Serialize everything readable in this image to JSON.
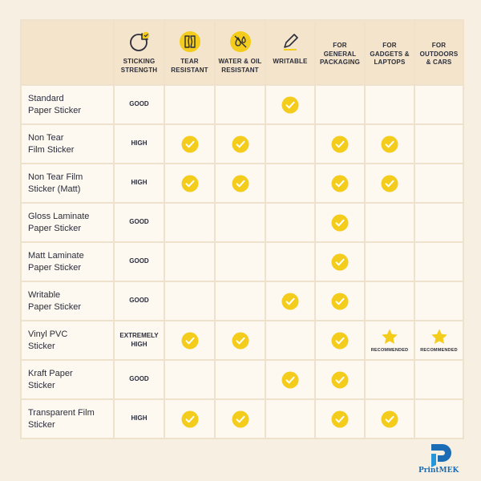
{
  "colors": {
    "accent_yellow": "#f4cc1b",
    "header_bg": "#f3e4cb",
    "page_bg": "#f8efe3",
    "text": "#2b2d3a",
    "brand_blue": "#1a6db5"
  },
  "headers": [
    {
      "label": "",
      "icon": ""
    },
    {
      "label": "STICKING STRENGTH",
      "icon": "sticker-icon"
    },
    {
      "label": "TEAR RESISTANT",
      "icon": "torn-paper-icon"
    },
    {
      "label": "WATER & OIL RESISTANT",
      "icon": "droplets-icon"
    },
    {
      "label": "WRITABLE",
      "icon": "pencil-icon"
    },
    {
      "label": "FOR GENERAL PACKAGING",
      "icon": ""
    },
    {
      "label": "FOR GADGETS & LAPTOPS",
      "icon": ""
    },
    {
      "label": "FOR OUTDOORS & CARS",
      "icon": ""
    }
  ],
  "rows": [
    {
      "name": [
        "Standard",
        "Paper Sticker"
      ],
      "strength": [
        "GOOD"
      ],
      "cells": [
        "",
        "",
        "check",
        "",
        "",
        ""
      ]
    },
    {
      "name": [
        "Non Tear",
        "Film Sticker"
      ],
      "strength": [
        "HIGH"
      ],
      "cells": [
        "check",
        "check",
        "",
        "check",
        "check",
        ""
      ]
    },
    {
      "name": [
        "Non Tear Film",
        "Sticker (Matt)"
      ],
      "strength": [
        "HIGH"
      ],
      "cells": [
        "check",
        "check",
        "",
        "check",
        "check",
        ""
      ]
    },
    {
      "name": [
        "Gloss Laminate",
        "Paper Sticker"
      ],
      "strength": [
        "GOOD"
      ],
      "cells": [
        "",
        "",
        "",
        "check",
        "",
        ""
      ]
    },
    {
      "name": [
        "Matt Laminate",
        "Paper Sticker"
      ],
      "strength": [
        "GOOD"
      ],
      "cells": [
        "",
        "",
        "",
        "check",
        "",
        ""
      ]
    },
    {
      "name": [
        "Writable",
        "Paper Sticker"
      ],
      "strength": [
        "GOOD"
      ],
      "cells": [
        "",
        "",
        "check",
        "check",
        "",
        ""
      ]
    },
    {
      "name": [
        "Vinyl PVC",
        "Sticker"
      ],
      "strength": [
        "EXTREMELY",
        "HIGH"
      ],
      "cells": [
        "check",
        "check",
        "",
        "check",
        "star",
        "star"
      ]
    },
    {
      "name": [
        "Kraft Paper",
        "Sticker"
      ],
      "strength": [
        "GOOD"
      ],
      "cells": [
        "",
        "",
        "check",
        "check",
        "",
        ""
      ]
    },
    {
      "name": [
        "Transparent Film",
        "Sticker"
      ],
      "strength": [
        "HIGH"
      ],
      "cells": [
        "check",
        "check",
        "",
        "check",
        "check",
        ""
      ]
    }
  ],
  "recommended_label": "RECOMMENDED",
  "brand": {
    "name": "PrintMEK",
    "icon": "printmek-logo"
  }
}
